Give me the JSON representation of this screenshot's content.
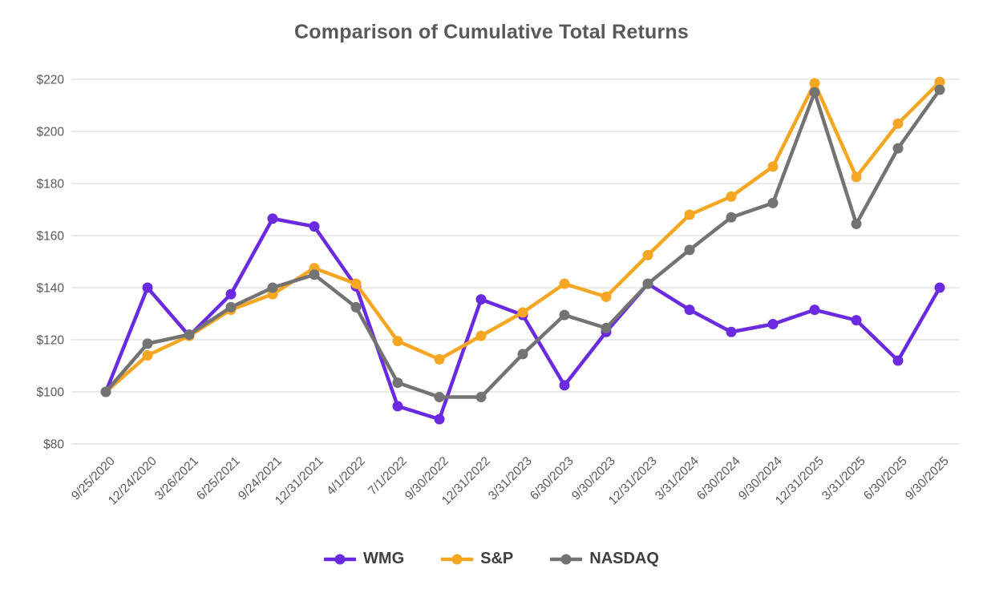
{
  "chart_data": {
    "type": "line",
    "title": "Comparison of Cumulative Total Returns",
    "categories": [
      "9/25/2020",
      "12/24/2020",
      "3/26/2021",
      "6/25/2021",
      "9/24/2021",
      "12/31/2021",
      "4/1/2022",
      "7/1/2022",
      "9/30/2022",
      "12/31/2022",
      "3/31/2023",
      "6/30/2023",
      "9/30/2023",
      "12/31/2023",
      "3/31/2024",
      "6/30/2024",
      "9/30/2024",
      "12/31/2025",
      "3/31/2025",
      "6/30/2025",
      "9/30/2025"
    ],
    "series": [
      {
        "name": "WMG",
        "color": "#6A2BE0",
        "values": [
          100,
          140,
          121.5,
          137.5,
          166.5,
          163.5,
          140.5,
          94.5,
          89.5,
          135.5,
          129.5,
          102.5,
          123,
          141.5,
          131.5,
          123,
          126,
          131.5,
          127.5,
          112,
          140
        ]
      },
      {
        "name": "S&P",
        "color": "#F5A623",
        "values": [
          100,
          114,
          121.5,
          131.5,
          137.5,
          147.5,
          141.5,
          119.5,
          112.5,
          121.5,
          130.5,
          141.5,
          136.5,
          152.5,
          168,
          175,
          186.5,
          218.5,
          182.5,
          203,
          219
        ]
      },
      {
        "name": "NASDAQ",
        "color": "#737373",
        "values": [
          100,
          118.5,
          122,
          132.5,
          140,
          145,
          132.5,
          103.5,
          98,
          98,
          114.5,
          129.5,
          124.5,
          141.5,
          154.5,
          167,
          172.5,
          215,
          164.5,
          193.5,
          216
        ]
      }
    ],
    "ylim": [
      80,
      220
    ],
    "y_ticks": [
      220,
      200,
      180,
      160,
      140,
      120,
      100,
      80
    ],
    "y_tick_labels": [
      "$220",
      "$200",
      "$180",
      "$160",
      "$140",
      "$120",
      "$100",
      "$80"
    ],
    "grid": true,
    "legend_position": "bottom",
    "gridline_color": "#E2E2E2",
    "label_color": "#595959",
    "title_color": "#595959",
    "legend_text_color": "#3f3f3f"
  }
}
